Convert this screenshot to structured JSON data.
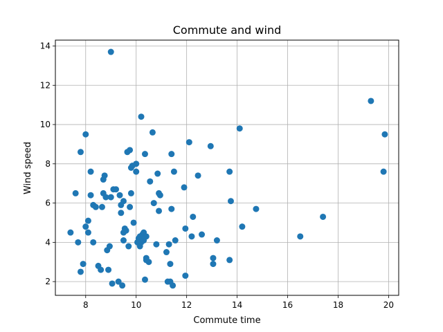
{
  "chart_data": {
    "type": "scatter",
    "title": "Commute and wind",
    "xlabel": "Commute time",
    "ylabel": "Wind speed",
    "xlim": [
      6.8,
      20.4
    ],
    "ylim": [
      1.3,
      14.3
    ],
    "xticks": [
      8,
      10,
      12,
      14,
      16,
      18,
      20
    ],
    "yticks": [
      2,
      4,
      6,
      8,
      10,
      12,
      14
    ],
    "grid": true,
    "marker_color": "#1f77b4",
    "points": [
      [
        7.4,
        4.5
      ],
      [
        7.6,
        6.5
      ],
      [
        7.7,
        4.0
      ],
      [
        7.8,
        2.5
      ],
      [
        7.8,
        8.6
      ],
      [
        7.9,
        2.9
      ],
      [
        8.0,
        4.8
      ],
      [
        8.0,
        9.5
      ],
      [
        8.1,
        4.5
      ],
      [
        8.1,
        5.1
      ],
      [
        8.2,
        6.4
      ],
      [
        8.2,
        7.6
      ],
      [
        8.3,
        5.9
      ],
      [
        8.3,
        4.0
      ],
      [
        8.4,
        5.8
      ],
      [
        8.5,
        2.8
      ],
      [
        8.6,
        2.6
      ],
      [
        8.65,
        5.8
      ],
      [
        8.7,
        6.5
      ],
      [
        8.7,
        7.2
      ],
      [
        8.75,
        7.4
      ],
      [
        8.8,
        6.3
      ],
      [
        8.85,
        3.6
      ],
      [
        8.9,
        2.6
      ],
      [
        8.95,
        3.8
      ],
      [
        9.0,
        6.3
      ],
      [
        9.0,
        13.7
      ],
      [
        9.05,
        1.9
      ],
      [
        9.1,
        6.7
      ],
      [
        9.2,
        6.7
      ],
      [
        9.3,
        2.0
      ],
      [
        9.35,
        6.4
      ],
      [
        9.4,
        5.5
      ],
      [
        9.4,
        5.9
      ],
      [
        9.45,
        1.8
      ],
      [
        9.5,
        6.1
      ],
      [
        9.5,
        4.1
      ],
      [
        9.5,
        4.5
      ],
      [
        9.55,
        4.7
      ],
      [
        9.6,
        4.6
      ],
      [
        9.65,
        8.6
      ],
      [
        9.7,
        3.8
      ],
      [
        9.75,
        8.7
      ],
      [
        9.75,
        5.8
      ],
      [
        9.8,
        7.8
      ],
      [
        9.8,
        6.5
      ],
      [
        9.85,
        7.9
      ],
      [
        9.9,
        5.0
      ],
      [
        10.0,
        8.0
      ],
      [
        10.0,
        7.6
      ],
      [
        10.05,
        4.0
      ],
      [
        10.1,
        4.2
      ],
      [
        10.15,
        4.3
      ],
      [
        10.15,
        3.8
      ],
      [
        10.2,
        10.4
      ],
      [
        10.2,
        4.0
      ],
      [
        10.25,
        4.4
      ],
      [
        10.3,
        4.1
      ],
      [
        10.3,
        4.5
      ],
      [
        10.35,
        8.5
      ],
      [
        10.35,
        2.1
      ],
      [
        10.4,
        3.2
      ],
      [
        10.4,
        3.1
      ],
      [
        10.4,
        4.3
      ],
      [
        10.5,
        3.0
      ],
      [
        10.55,
        7.1
      ],
      [
        10.65,
        9.6
      ],
      [
        10.7,
        6.0
      ],
      [
        10.8,
        3.9
      ],
      [
        10.85,
        7.5
      ],
      [
        10.9,
        5.6
      ],
      [
        10.9,
        6.5
      ],
      [
        10.95,
        6.4
      ],
      [
        11.2,
        3.5
      ],
      [
        11.25,
        2.0
      ],
      [
        11.3,
        3.9
      ],
      [
        11.35,
        2.0
      ],
      [
        11.35,
        2.9
      ],
      [
        11.4,
        8.5
      ],
      [
        11.4,
        5.7
      ],
      [
        11.45,
        1.8
      ],
      [
        11.5,
        7.6
      ],
      [
        11.55,
        4.1
      ],
      [
        11.9,
        6.8
      ],
      [
        11.95,
        2.3
      ],
      [
        11.95,
        4.7
      ],
      [
        12.1,
        9.1
      ],
      [
        12.2,
        4.3
      ],
      [
        12.25,
        5.3
      ],
      [
        12.45,
        7.4
      ],
      [
        12.6,
        4.4
      ],
      [
        12.95,
        8.9
      ],
      [
        13.05,
        3.2
      ],
      [
        13.05,
        2.9
      ],
      [
        13.2,
        4.1
      ],
      [
        13.7,
        3.1
      ],
      [
        13.7,
        7.6
      ],
      [
        13.75,
        6.1
      ],
      [
        14.1,
        9.8
      ],
      [
        14.2,
        4.8
      ],
      [
        14.75,
        5.7
      ],
      [
        16.5,
        4.3
      ],
      [
        17.4,
        5.3
      ],
      [
        19.3,
        11.2
      ],
      [
        19.8,
        7.6
      ],
      [
        19.85,
        9.5
      ]
    ]
  }
}
